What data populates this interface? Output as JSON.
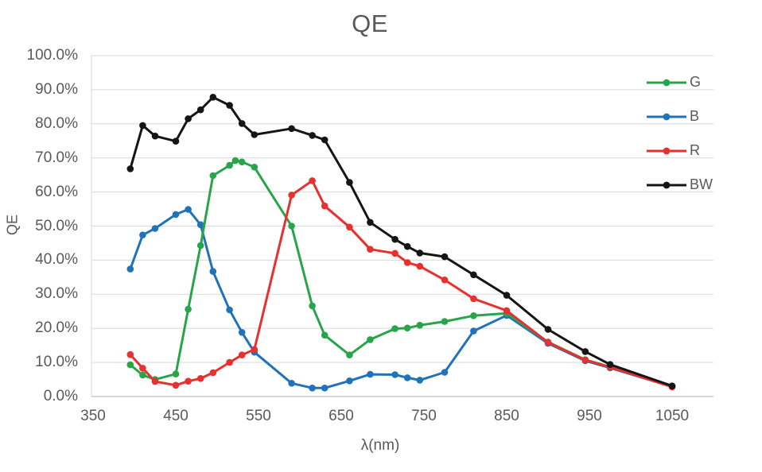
{
  "chart_data": {
    "type": "line",
    "title": "QE",
    "xlabel": "λ(nm)",
    "ylabel": "QE",
    "legend_position": "right-inside",
    "grid": "horizontal-only",
    "marker": "circle",
    "colors": {
      "text": "#595959",
      "gridline": "#D9D9D9",
      "axis_line": "#BFBFBF",
      "background": "#FFFFFF"
    },
    "x_axis": {
      "min": 350,
      "max": 1100,
      "ticks": [
        {
          "value": 350,
          "label": "350"
        },
        {
          "value": 450,
          "label": "450"
        },
        {
          "value": 550,
          "label": "550"
        },
        {
          "value": 650,
          "label": "650"
        },
        {
          "value": 750,
          "label": "750"
        },
        {
          "value": 850,
          "label": "850"
        },
        {
          "value": 950,
          "label": "950"
        },
        {
          "value": 1050,
          "label": "1050"
        }
      ]
    },
    "y_axis": {
      "min": 0,
      "max": 100,
      "ticks": [
        {
          "value": 0,
          "label": "0.0%"
        },
        {
          "value": 10,
          "label": "10.0%"
        },
        {
          "value": 20,
          "label": "20.0%"
        },
        {
          "value": 30,
          "label": "30.0%"
        },
        {
          "value": 40,
          "label": "40.0%"
        },
        {
          "value": 50,
          "label": "50.0%"
        },
        {
          "value": 60,
          "label": "60.0%"
        },
        {
          "value": 70,
          "label": "70.0%"
        },
        {
          "value": 80,
          "label": "80.0%"
        },
        {
          "value": 90,
          "label": "90.0%"
        },
        {
          "value": 100,
          "label": "100.0%"
        }
      ]
    },
    "series": [
      {
        "name": "G",
        "color": "#28A54B",
        "points": [
          [
            395,
            9.3
          ],
          [
            410,
            6.3
          ],
          [
            425,
            5.0
          ],
          [
            450,
            6.6
          ],
          [
            465,
            25.6
          ],
          [
            480,
            44.3
          ],
          [
            495,
            64.8
          ],
          [
            515,
            67.8
          ],
          [
            522,
            69.2
          ],
          [
            530,
            68.8
          ],
          [
            545,
            67.3
          ],
          [
            590,
            50.0
          ],
          [
            615,
            26.6
          ],
          [
            630,
            18.0
          ],
          [
            660,
            12.2
          ],
          [
            685,
            16.7
          ],
          [
            715,
            19.9
          ],
          [
            730,
            20.1
          ],
          [
            745,
            20.9
          ],
          [
            775,
            22.0
          ],
          [
            810,
            23.7
          ],
          [
            850,
            24.4
          ],
          [
            900,
            16.0
          ],
          [
            945,
            10.8
          ],
          [
            975,
            8.7
          ],
          [
            1050,
            3.0
          ]
        ]
      },
      {
        "name": "B",
        "color": "#2073B9",
        "points": [
          [
            395,
            37.4
          ],
          [
            410,
            47.4
          ],
          [
            425,
            49.3
          ],
          [
            450,
            53.4
          ],
          [
            465,
            54.9
          ],
          [
            480,
            50.4
          ],
          [
            495,
            36.7
          ],
          [
            515,
            25.4
          ],
          [
            530,
            18.8
          ],
          [
            545,
            13.0
          ],
          [
            590,
            3.9
          ],
          [
            615,
            2.5
          ],
          [
            630,
            2.5
          ],
          [
            660,
            4.6
          ],
          [
            685,
            6.5
          ],
          [
            715,
            6.4
          ],
          [
            730,
            5.5
          ],
          [
            745,
            4.8
          ],
          [
            775,
            7.1
          ],
          [
            810,
            19.2
          ],
          [
            850,
            23.8
          ],
          [
            900,
            15.6
          ],
          [
            945,
            10.5
          ],
          [
            975,
            8.4
          ],
          [
            1050,
            2.9
          ]
        ]
      },
      {
        "name": "R",
        "color": "#E8302E",
        "points": [
          [
            395,
            12.3
          ],
          [
            410,
            8.3
          ],
          [
            425,
            4.4
          ],
          [
            450,
            3.3
          ],
          [
            465,
            4.5
          ],
          [
            480,
            5.3
          ],
          [
            495,
            7.0
          ],
          [
            515,
            10.0
          ],
          [
            530,
            12.2
          ],
          [
            545,
            13.8
          ],
          [
            590,
            59.1
          ],
          [
            615,
            63.3
          ],
          [
            630,
            55.9
          ],
          [
            660,
            49.7
          ],
          [
            685,
            43.2
          ],
          [
            715,
            42.0
          ],
          [
            730,
            39.3
          ],
          [
            745,
            38.2
          ],
          [
            775,
            34.2
          ],
          [
            810,
            28.7
          ],
          [
            850,
            25.2
          ],
          [
            900,
            15.9
          ],
          [
            945,
            10.7
          ],
          [
            975,
            8.6
          ],
          [
            1050,
            2.8
          ]
        ]
      },
      {
        "name": "BW",
        "color": "#151515",
        "points": [
          [
            395,
            66.8
          ],
          [
            410,
            79.5
          ],
          [
            425,
            76.4
          ],
          [
            450,
            74.9
          ],
          [
            465,
            81.5
          ],
          [
            480,
            84.1
          ],
          [
            495,
            87.8
          ],
          [
            515,
            85.4
          ],
          [
            530,
            80.1
          ],
          [
            545,
            76.8
          ],
          [
            590,
            78.6
          ],
          [
            615,
            76.6
          ],
          [
            630,
            75.3
          ],
          [
            660,
            62.8
          ],
          [
            685,
            51.1
          ],
          [
            715,
            46.1
          ],
          [
            730,
            44.0
          ],
          [
            745,
            42.1
          ],
          [
            775,
            41.0
          ],
          [
            810,
            35.7
          ],
          [
            850,
            29.7
          ],
          [
            900,
            19.7
          ],
          [
            945,
            13.2
          ],
          [
            975,
            9.4
          ],
          [
            1050,
            3.1
          ]
        ]
      }
    ]
  }
}
